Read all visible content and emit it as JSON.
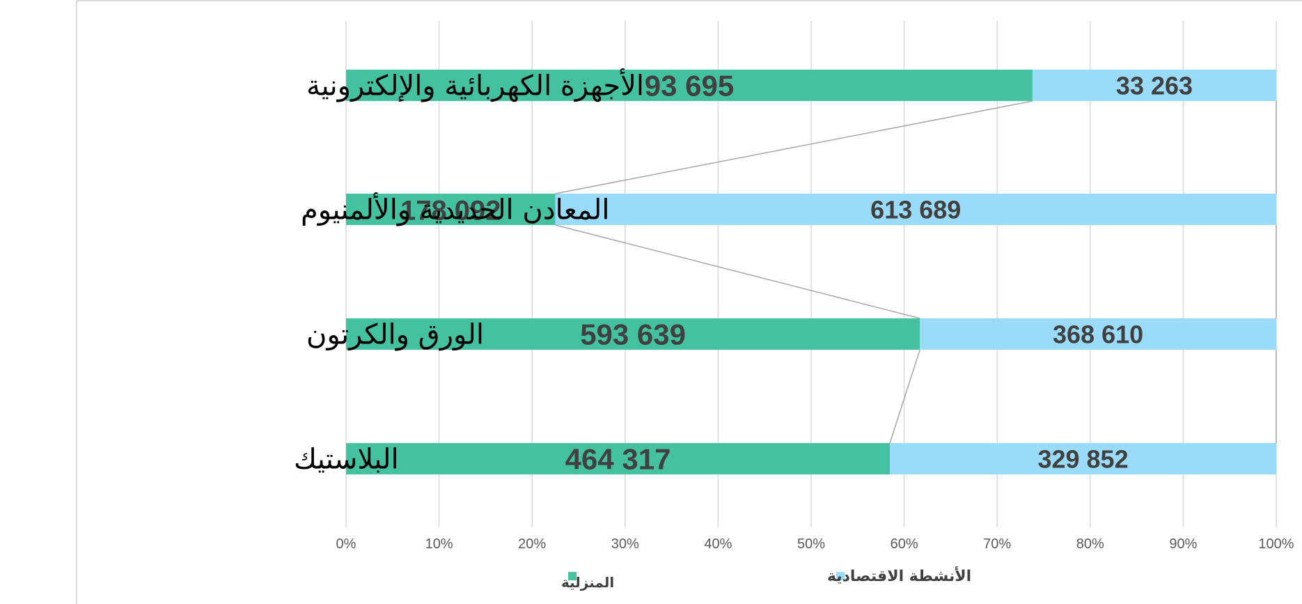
{
  "chart_data": {
    "type": "bar",
    "stacking": "percent",
    "orientation": "horizontal",
    "categories": [
      "الأجهزة الكهربائية والإلكترونية",
      "المعادن الحديدية والألمنيوم",
      "الورق والكرتون",
      "البلاستيك"
    ],
    "series": [
      {
        "name": "المنزلية",
        "color": "#44c2a0",
        "values": [
          93695,
          178092,
          593639,
          464317
        ],
        "labels": [
          "93 695",
          "178 092",
          "593 639",
          "464 317"
        ]
      },
      {
        "name": "الأنشطة الاقتصادية",
        "color": "#99dbf9",
        "values": [
          33263,
          613689,
          368610,
          329852
        ],
        "labels": [
          "33 263",
          "613 689",
          "368 610",
          "329 852"
        ]
      }
    ],
    "xlim": [
      0,
      100
    ],
    "x_ticks": [
      "0%",
      "10%",
      "20%",
      "30%",
      "40%",
      "50%",
      "60%",
      "70%",
      "80%",
      "90%",
      "100%"
    ],
    "grid": true,
    "series_lines": true,
    "legend_position": "bottom",
    "title": "",
    "xlabel": "",
    "ylabel": ""
  }
}
